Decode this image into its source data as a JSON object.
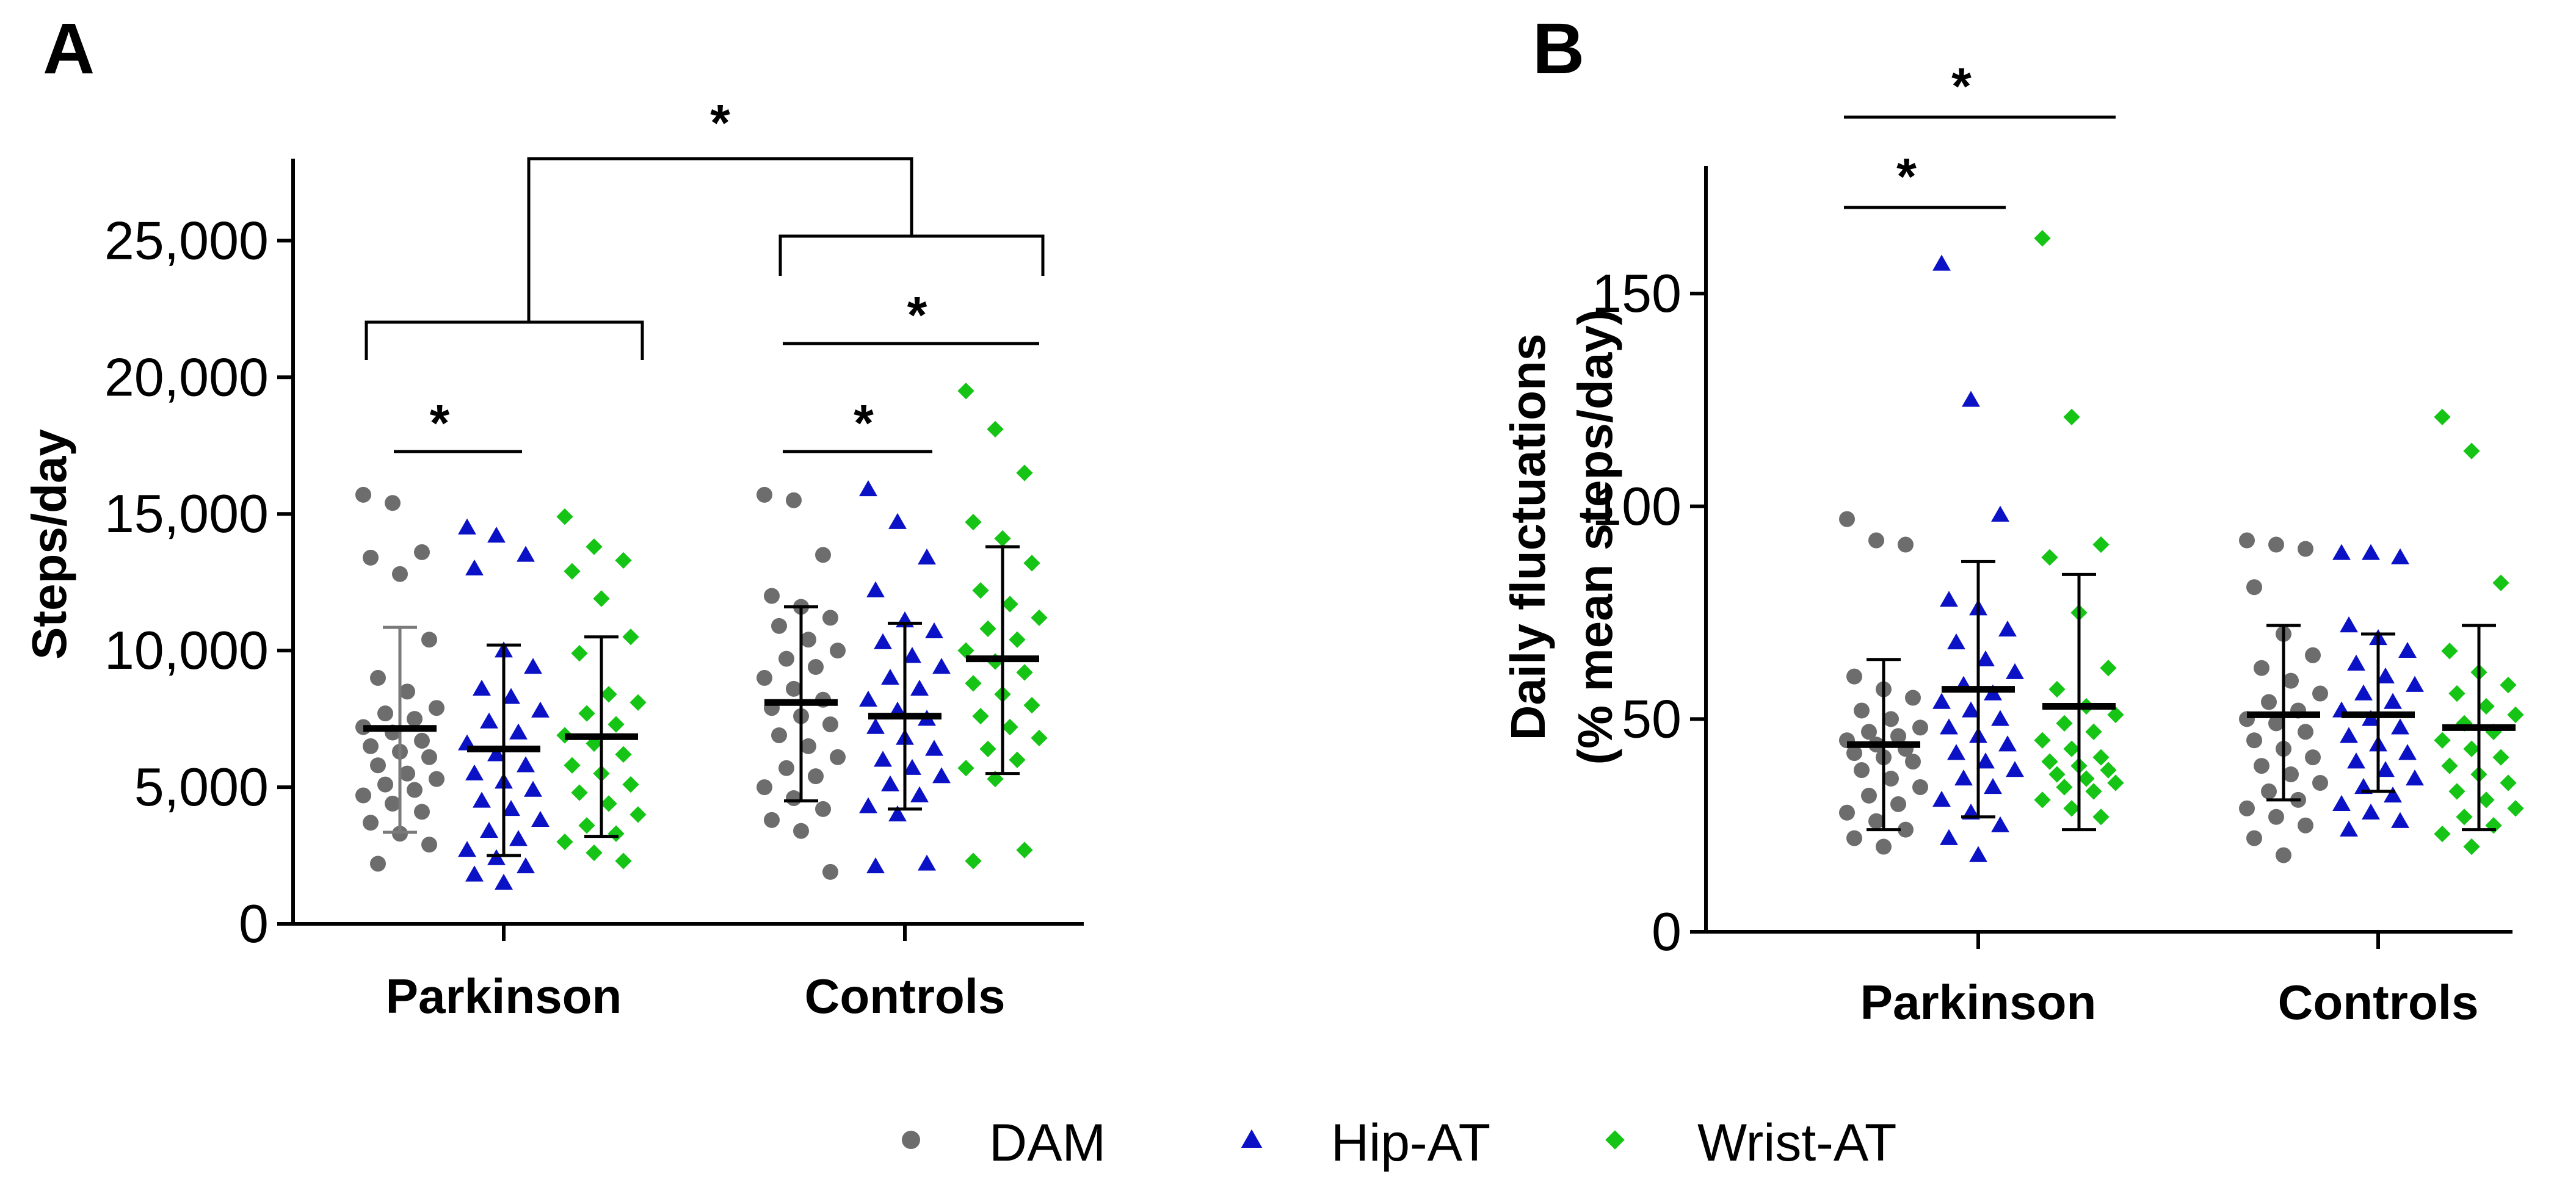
{
  "colors": {
    "DAM": "#6d6d6d",
    "Hip-AT": "#0b12c6",
    "Wrist-AT": "#16c416",
    "axis": "#000000"
  },
  "chart_data": [
    {
      "type": "scatter",
      "panel": "A",
      "ylabel": "Steps/day",
      "ylim": [
        0,
        28000
      ],
      "yticks": [
        {
          "value": 0,
          "label": "0"
        },
        {
          "value": 5000,
          "label": "5,000"
        },
        {
          "value": 10000,
          "label": "10,000"
        },
        {
          "value": 15000,
          "label": "15,000"
        },
        {
          "value": 20000,
          "label": "20,000"
        },
        {
          "value": 25000,
          "label": "25,000"
        }
      ],
      "groups": [
        "Parkinson",
        "Controls"
      ],
      "series": [
        {
          "name": "DAM",
          "marker": "circle",
          "groups": [
            {
              "group": "Parkinson",
              "mean": 7150,
              "sd_low": 3350,
              "sd_high": 10850,
              "values": [
                15700,
                15400,
                13600,
                13400,
                12800,
                10400,
                9000,
                8500,
                7900,
                7700,
                7500,
                7200,
                7000,
                6700,
                6500,
                6300,
                6100,
                5800,
                5500,
                5300,
                5100,
                4900,
                4700,
                4400,
                4100,
                3700,
                3300,
                2900,
                2200
              ]
            },
            {
              "group": "Controls",
              "mean": 8100,
              "sd_low": 4500,
              "sd_high": 11600,
              "values": [
                15700,
                15500,
                13500,
                12000,
                11600,
                11200,
                10900,
                10400,
                10000,
                9700,
                9400,
                9000,
                8600,
                8200,
                7900,
                7600,
                7300,
                6900,
                6500,
                6100,
                5700,
                5400,
                5000,
                4600,
                4200,
                3800,
                3400,
                1900
              ]
            }
          ]
        },
        {
          "name": "Hip-AT",
          "marker": "triangle",
          "groups": [
            {
              "group": "Parkinson",
              "mean": 6400,
              "sd_low": 2500,
              "sd_high": 10200,
              "values": [
                14500,
                14200,
                13500,
                13000,
                10000,
                9400,
                8600,
                8300,
                7800,
                7400,
                7000,
                6600,
                6200,
                5800,
                5500,
                5200,
                4900,
                4500,
                4200,
                3800,
                3400,
                3100,
                2700,
                2400,
                2100,
                1800,
                1500
              ]
            },
            {
              "group": "Controls",
              "mean": 7600,
              "sd_low": 4200,
              "sd_high": 11000,
              "values": [
                15900,
                14700,
                13400,
                12200,
                11100,
                10700,
                10300,
                9800,
                9400,
                9000,
                8600,
                8200,
                7800,
                7500,
                7200,
                6800,
                6400,
                6000,
                5700,
                5400,
                5100,
                4700,
                4300,
                4000,
                2200,
                2100
              ]
            }
          ]
        },
        {
          "name": "Wrist-AT",
          "marker": "diamond",
          "groups": [
            {
              "group": "Parkinson",
              "mean": 6850,
              "sd_low": 3200,
              "sd_high": 10500,
              "values": [
                14900,
                13800,
                13300,
                12900,
                11900,
                10500,
                9900,
                8400,
                8100,
                7700,
                7300,
                6900,
                6600,
                6200,
                5800,
                5500,
                5100,
                4800,
                4400,
                4000,
                3600,
                3300,
                3000,
                2600,
                2300
              ]
            },
            {
              "group": "Controls",
              "mean": 9700,
              "sd_low": 5500,
              "sd_high": 13800,
              "values": [
                19500,
                18100,
                16500,
                14700,
                14100,
                13200,
                12200,
                11700,
                11200,
                10800,
                10400,
                10000,
                9600,
                9200,
                8800,
                8400,
                8000,
                7600,
                7200,
                6800,
                6400,
                6000,
                5700,
                5300,
                2700,
                2300
              ]
            }
          ]
        }
      ],
      "annotations": [
        {
          "type": "line",
          "from": "Parkinson/DAM",
          "to": "Parkinson/Hip-AT",
          "label": "*"
        },
        {
          "type": "line",
          "from": "Controls/DAM",
          "to": "Controls/Hip-AT",
          "label": "*"
        },
        {
          "type": "line",
          "from": "Controls/DAM",
          "to": "Controls/Wrist-AT",
          "label": "*"
        },
        {
          "type": "bracket",
          "from": "Parkinson",
          "to": "Controls",
          "label": "*"
        }
      ]
    },
    {
      "type": "scatter",
      "panel": "B",
      "ylabel_line1": "Daily fluctuations",
      "ylabel_line2": "(% mean steps/day)",
      "ylim": [
        0,
        180
      ],
      "yticks": [
        {
          "value": 0,
          "label": "0"
        },
        {
          "value": 50,
          "label": "50"
        },
        {
          "value": 100,
          "label": "100"
        },
        {
          "value": 150,
          "label": "150"
        }
      ],
      "groups": [
        "Parkinson",
        "Controls"
      ],
      "series": [
        {
          "name": "DAM",
          "marker": "circle",
          "groups": [
            {
              "group": "Parkinson",
              "mean": 44,
              "sd_low": 24,
              "sd_high": 64,
              "values": [
                97,
                92,
                91,
                60,
                57,
                55,
                52,
                50,
                48,
                47,
                46,
                45,
                44,
                43,
                42,
                41,
                40,
                38,
                36,
                34,
                32,
                30,
                28,
                26,
                24,
                22,
                20
              ]
            },
            {
              "group": "Controls",
              "mean": 51,
              "sd_low": 31,
              "sd_high": 72,
              "values": [
                92,
                91,
                90,
                81,
                70,
                65,
                62,
                59,
                56,
                54,
                52,
                50,
                49,
                47,
                45,
                43,
                41,
                39,
                37,
                35,
                33,
                31,
                29,
                27,
                25,
                22,
                18
              ]
            }
          ]
        },
        {
          "name": "Hip-AT",
          "marker": "triangle",
          "groups": [
            {
              "group": "Parkinson",
              "mean": 57,
              "sd_low": 27,
              "sd_high": 87,
              "values": [
                157,
                125,
                98,
                78,
                76,
                71,
                68,
                64,
                61,
                58,
                56,
                54,
                52,
                50,
                48,
                46,
                44,
                42,
                40,
                38,
                36,
                34,
                31,
                28,
                25,
                22,
                18
              ]
            },
            {
              "group": "Controls",
              "mean": 51,
              "sd_low": 33,
              "sd_high": 70,
              "values": [
                89,
                89,
                88,
                72,
                69,
                66,
                63,
                60,
                58,
                56,
                54,
                52,
                50,
                48,
                46,
                44,
                42,
                40,
                38,
                36,
                34,
                32,
                30,
                28,
                26,
                24
              ]
            }
          ]
        },
        {
          "name": "Wrist-AT",
          "marker": "diamond",
          "groups": [
            {
              "group": "Parkinson",
              "mean": 53,
              "sd_low": 24,
              "sd_high": 84,
              "values": [
                163,
                121,
                91,
                88,
                75,
                62,
                57,
                53,
                51,
                49,
                47,
                45,
                43,
                41,
                40,
                39,
                38,
                37,
                36,
                35,
                34,
                33,
                31,
                29,
                27
              ]
            },
            {
              "group": "Controls",
              "mean": 48,
              "sd_low": 24,
              "sd_high": 72,
              "values": [
                121,
                113,
                82,
                66,
                61,
                58,
                56,
                53,
                51,
                49,
                47,
                45,
                43,
                41,
                39,
                37,
                35,
                33,
                31,
                29,
                27,
                25,
                23,
                20
              ]
            }
          ]
        }
      ],
      "annotations": [
        {
          "type": "line",
          "from": "Parkinson/DAM",
          "to": "Parkinson/Hip-AT",
          "label": "*"
        },
        {
          "type": "line",
          "from": "Parkinson/DAM",
          "to": "Parkinson/Wrist-AT",
          "label": "*"
        }
      ]
    }
  ],
  "legend": {
    "items": [
      {
        "name": "DAM",
        "marker": "circle"
      },
      {
        "name": "Hip-AT",
        "marker": "triangle"
      },
      {
        "name": "Wrist-AT",
        "marker": "diamond"
      }
    ]
  }
}
